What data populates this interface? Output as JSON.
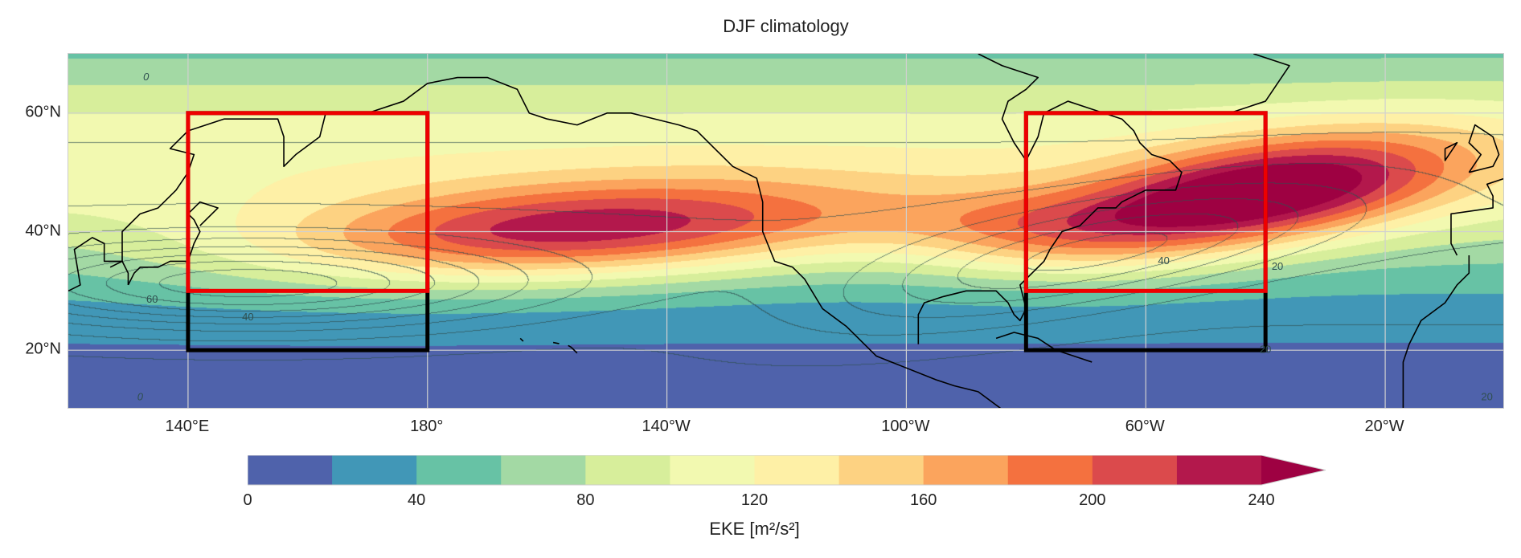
{
  "title": "DJF climatology",
  "map": {
    "extent": {
      "lon_min": 120,
      "lon_max": 360,
      "lat_min": 10,
      "lat_max": 70
    },
    "lat_ticks": [
      {
        "value": 60,
        "label": "60°N"
      },
      {
        "value": 40,
        "label": "40°N"
      },
      {
        "value": 20,
        "label": "20°N"
      }
    ],
    "lon_ticks": [
      {
        "value": 140,
        "label": "140°E"
      },
      {
        "value": 180,
        "label": "180°"
      },
      {
        "value": 220,
        "label": "140°W"
      },
      {
        "value": 260,
        "label": "100°W"
      },
      {
        "value": 300,
        "label": "60°W"
      },
      {
        "value": 340,
        "label": "20°W"
      }
    ],
    "boxes": [
      {
        "name": "west-pacific-black-box",
        "color": "#000000",
        "lon": [
          140,
          180
        ],
        "lat": [
          20,
          60
        ]
      },
      {
        "name": "west-pacific-red-box",
        "color": "#ee0000",
        "lon": [
          140,
          180
        ],
        "lat": [
          30,
          60
        ]
      },
      {
        "name": "west-atlantic-black-box",
        "color": "#000000",
        "lon": [
          280,
          320
        ],
        "lat": [
          20,
          60
        ]
      },
      {
        "name": "west-atlantic-red-box",
        "color": "#ee0000",
        "lon": [
          280,
          320
        ],
        "lat": [
          30,
          60
        ]
      }
    ],
    "contour_labels": [
      {
        "text": "0",
        "lon": 133,
        "lat": 66
      },
      {
        "text": "60",
        "lon": 134,
        "lat": 28.5
      },
      {
        "text": "40",
        "lon": 150,
        "lat": 25.5
      },
      {
        "text": "40",
        "lon": 303,
        "lat": 35
      },
      {
        "text": "20",
        "lon": 322,
        "lat": 34
      },
      {
        "text": "20",
        "lon": 320,
        "lat": 20
      },
      {
        "text": "20",
        "lon": 357,
        "lat": 12
      },
      {
        "text": "0",
        "lon": 132,
        "lat": 12
      }
    ]
  },
  "colorbar": {
    "levels": [
      0,
      20,
      40,
      60,
      80,
      100,
      120,
      140,
      160,
      180,
      200,
      220,
      240
    ],
    "colors": [
      "#4f62ab",
      "#4197b7",
      "#67c2a5",
      "#a3d9a4",
      "#d7ee9b",
      "#f2f9b0",
      "#fef0a6",
      "#fdd282",
      "#fba45d",
      "#f4713f",
      "#db4a4c",
      "#b3184c",
      "#9e0142"
    ],
    "extend": "max",
    "tick_labels": [
      "0",
      "40",
      "80",
      "120",
      "160",
      "200",
      "240"
    ],
    "label": "EKE [m²/s²]"
  },
  "colors": {
    "coastline": "#000000",
    "contour": "#2f4f4f",
    "grid": "#d0d0d0"
  }
}
